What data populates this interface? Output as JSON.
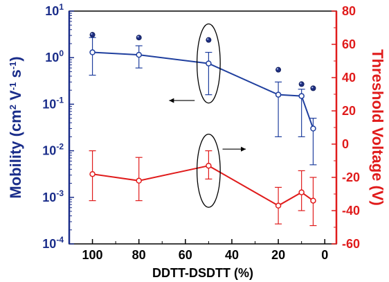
{
  "chart_data": {
    "type": "line",
    "xlabel": "DDTT-DSDTT (%)",
    "x_ticks": [
      "100",
      "80",
      "60",
      "40",
      "20",
      "0"
    ],
    "xlim": [
      110,
      -5
    ],
    "x_reversed": true,
    "y_left": {
      "label_main": "Mobility (cm",
      "label_sup1": "2",
      "label_mid": " V",
      "label_sup2": "-1",
      "label_mid2": " s",
      "label_sup3": "-1",
      "label_end": ")",
      "scale": "log",
      "ylim": [
        0.0001,
        10
      ],
      "ticks": [
        {
          "base": "10",
          "exp": "-4",
          "value": 0.0001
        },
        {
          "base": "10",
          "exp": "-3",
          "value": 0.001
        },
        {
          "base": "10",
          "exp": "-2",
          "value": 0.01
        },
        {
          "base": "10",
          "exp": "-1",
          "value": 0.1
        },
        {
          "base": "10",
          "exp": "0",
          "value": 1
        },
        {
          "base": "10",
          "exp": "1",
          "value": 10
        }
      ],
      "color": "#1a2d8a"
    },
    "y_right": {
      "label": "Threshold Voltage (V)",
      "ylim": [
        -60,
        80
      ],
      "ticks": [
        "-60",
        "-40",
        "-20",
        "0",
        "20",
        "40",
        "60",
        "80"
      ],
      "color": "#e01b1b"
    },
    "series": [
      {
        "axis": "left",
        "color": "#1f3f9e",
        "points": [
          {
            "x": 100,
            "y": 1.3,
            "err_low": 0.42,
            "err_high": 2.7
          },
          {
            "x": 80,
            "y": 1.15,
            "err_low": 0.6,
            "err_high": 1.8
          },
          {
            "x": 50,
            "y": 0.75,
            "err_low": 0.16,
            "err_high": 1.3
          },
          {
            "x": 20,
            "y": 0.16,
            "err_low": 0.02,
            "err_high": 0.3
          },
          {
            "x": 10,
            "y": 0.15,
            "err_low": 0.02,
            "err_high": 0.21
          },
          {
            "x": 5,
            "y": 0.03,
            "err_low": 0.005,
            "err_high": 0.05
          }
        ]
      },
      {
        "axis": "left",
        "type": "scatter",
        "color": "#1f2f80",
        "points": [
          {
            "x": 100,
            "y": 3.1
          },
          {
            "x": 80,
            "y": 2.7
          },
          {
            "x": 50,
            "y": 2.4
          },
          {
            "x": 20,
            "y": 0.55
          },
          {
            "x": 10,
            "y": 0.27
          },
          {
            "x": 5,
            "y": 0.22
          }
        ]
      },
      {
        "axis": "right",
        "color": "#e01b1b",
        "points": [
          {
            "x": 100,
            "y": -18,
            "err_low": -34,
            "err_high": -4
          },
          {
            "x": 80,
            "y": -22,
            "err_low": -34,
            "err_high": -8
          },
          {
            "x": 50,
            "y": -13,
            "err_low": -21,
            "err_high": -4
          },
          {
            "x": 20,
            "y": -37,
            "err_low": -48,
            "err_high": -26
          },
          {
            "x": 10,
            "y": -29,
            "err_low": -40,
            "err_high": -16
          },
          {
            "x": 5,
            "y": -34,
            "err_low": -49,
            "err_high": -20
          }
        ]
      }
    ],
    "annotations": [
      {
        "type": "ellipse",
        "center_x": 50,
        "center_y_left": 0.75,
        "rx_units": 5,
        "ry_decades": 0.85
      },
      {
        "type": "ellipse",
        "center_x": 50,
        "center_y_right": -16,
        "rx_units": 5,
        "ry_units": 22
      },
      {
        "type": "arrow",
        "direction": "left",
        "axis": "left",
        "from_x": 56,
        "to_x": 67,
        "y": 0.12
      },
      {
        "type": "arrow",
        "direction": "right",
        "axis": "right",
        "from_x": 44,
        "to_x": 34,
        "y": -3
      }
    ]
  }
}
